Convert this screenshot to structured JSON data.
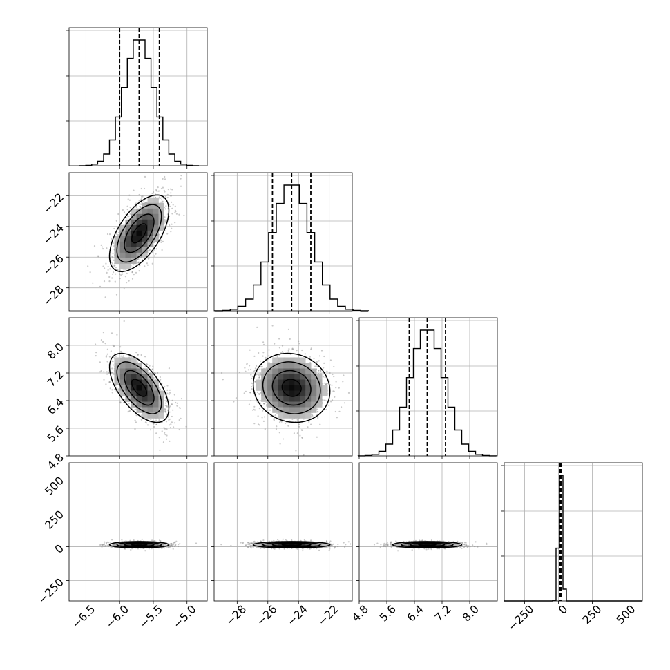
{
  "chart_data": {
    "type": "corner",
    "parameters": [
      {
        "range": [
          -6.75,
          -4.7
        ],
        "ticks": [
          -6.5,
          -6.0,
          -5.5,
          -5.0
        ],
        "tick_labels": [
          "−6.5",
          "−6.0",
          "−5.5",
          "−5.0"
        ],
        "mean": -5.71,
        "sd": 0.22,
        "quantiles": [
          -6.0,
          -5.71,
          -5.41
        ]
      },
      {
        "range": [
          -29.5,
          -20.5
        ],
        "ticks": [
          -28,
          -26,
          -24,
          -22
        ],
        "tick_labels": [
          "−28",
          "−26",
          "−24",
          "−22"
        ],
        "mean": -24.45,
        "sd": 1.25,
        "quantiles": [
          -25.7,
          -24.45,
          -23.2
        ]
      },
      {
        "range": [
          4.8,
          8.8
        ],
        "ticks": [
          4.8,
          5.6,
          6.4,
          7.2,
          8.0
        ],
        "tick_labels": [
          "4.8",
          "5.6",
          "6.4",
          "7.2",
          "8.0"
        ],
        "mean": 6.77,
        "sd": 0.5,
        "quantiles": [
          6.25,
          6.77,
          7.3
        ]
      },
      {
        "range": [
          -400,
          620
        ],
        "ticks": [
          -250,
          0,
          250,
          500
        ],
        "tick_labels": [
          "−250",
          "0",
          "250",
          "500"
        ],
        "mean": 15,
        "sd": 12,
        "quantiles": [
          8,
          15,
          23
        ]
      }
    ],
    "correlations": {
      "0-1": 0.6,
      "0-2": -0.6,
      "1-2": -0.1,
      "0-3": 0.0,
      "1-3": 0.0,
      "2-3": 0.0
    },
    "grid": true,
    "quantile_lines": "dashed"
  }
}
